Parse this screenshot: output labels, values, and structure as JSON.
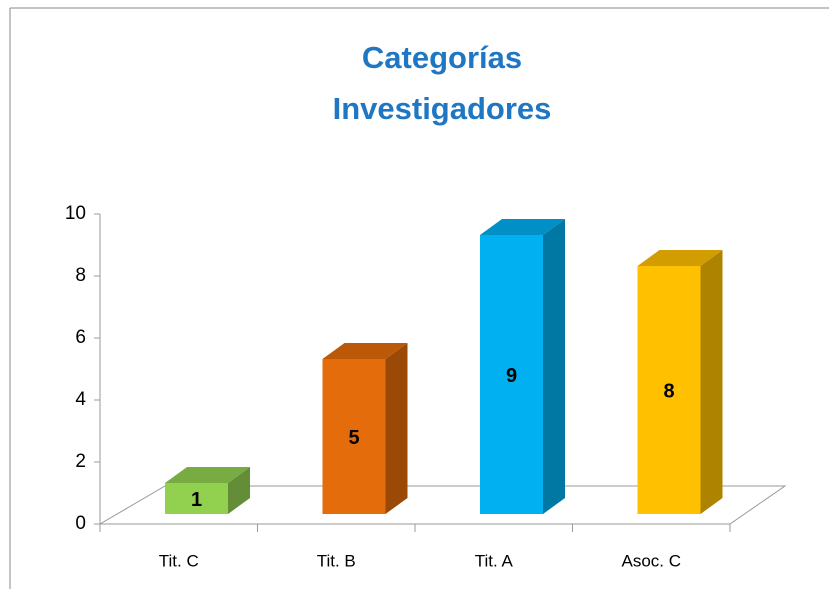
{
  "chart_data": {
    "type": "bar3d",
    "title": [
      "Categorías",
      "Investigadores"
    ],
    "categories": [
      "Tit. C",
      "Tit. B",
      "Tit. A",
      "Asoc. C"
    ],
    "values": [
      1,
      5,
      9,
      8
    ],
    "colors": [
      "#92d050",
      "#e46c0a",
      "#00b0f0",
      "#ffc000"
    ],
    "ylim": [
      0,
      10
    ],
    "yticks": [
      0,
      2,
      4,
      6,
      8,
      10
    ]
  }
}
